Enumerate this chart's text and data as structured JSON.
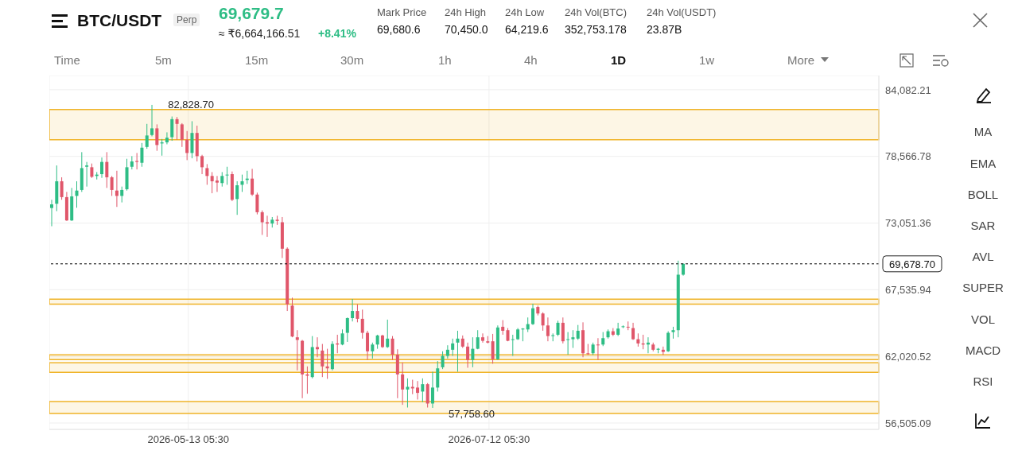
{
  "chart_data": {
    "type": "candlestick",
    "title": "BTC/USDT",
    "subtitle": "Perp",
    "x": [
      "2026-04-16",
      "2026-04-17",
      "2026-04-18",
      "2026-04-19",
      "2026-04-20",
      "2026-04-21",
      "2026-04-22",
      "2026-04-23",
      "2026-04-24",
      "2026-04-25",
      "2026-04-26",
      "2026-04-27",
      "2026-04-28",
      "2026-04-29",
      "2026-04-30",
      "2026-05-01",
      "2026-05-02",
      "2026-05-03",
      "2026-05-04",
      "2026-05-05",
      "2026-05-06",
      "2026-05-07",
      "2026-05-08",
      "2026-05-09",
      "2026-05-10",
      "2026-05-11",
      "2026-05-12",
      "2026-05-13",
      "2026-05-14",
      "2026-05-15",
      "2026-05-16",
      "2026-05-17",
      "2026-05-18",
      "2026-05-19",
      "2026-05-20",
      "2026-05-21",
      "2026-05-22",
      "2026-05-23",
      "2026-05-24",
      "2026-05-25",
      "2026-05-26",
      "2026-05-27",
      "2026-05-28",
      "2026-05-29",
      "2026-05-30",
      "2026-05-31",
      "2026-06-01",
      "2026-06-02",
      "2026-06-03",
      "2026-06-04",
      "2026-06-05",
      "2026-06-06",
      "2026-06-07",
      "2026-06-08",
      "2026-06-09",
      "2026-06-10",
      "2026-06-11",
      "2026-06-12",
      "2026-06-13",
      "2026-06-14",
      "2026-06-15",
      "2026-06-16",
      "2026-06-17",
      "2026-06-18",
      "2026-06-19",
      "2026-06-20",
      "2026-06-21",
      "2026-06-22",
      "2026-06-23",
      "2026-06-24",
      "2026-06-25",
      "2026-06-26",
      "2026-06-27",
      "2026-06-28",
      "2026-06-29",
      "2026-06-30",
      "2026-07-01",
      "2026-07-02",
      "2026-07-03",
      "2026-07-04",
      "2026-07-05",
      "2026-07-06",
      "2026-07-07",
      "2026-07-08",
      "2026-07-09",
      "2026-07-10",
      "2026-07-11",
      "2026-07-12",
      "2026-07-13",
      "2026-07-14",
      "2026-07-15",
      "2026-07-16",
      "2026-07-17",
      "2026-07-18",
      "2026-07-19",
      "2026-07-20",
      "2026-07-21",
      "2026-07-22",
      "2026-07-23",
      "2026-07-24",
      "2026-07-25",
      "2026-07-26",
      "2026-07-27",
      "2026-07-28",
      "2026-07-29",
      "2026-07-30",
      "2026-07-31",
      "2026-08-01",
      "2026-08-02",
      "2026-08-03",
      "2026-08-04",
      "2026-08-05",
      "2026-08-06",
      "2026-08-07",
      "2026-08-08",
      "2026-08-09",
      "2026-08-10",
      "2026-08-11",
      "2026-08-12",
      "2026-08-13",
      "2026-08-14",
      "2026-08-15",
      "2026-08-16",
      "2026-08-17",
      "2026-08-18",
      "2026-08-19",
      "2026-08-20"
    ],
    "ohlc": [
      [
        74300,
        74980,
        72790,
        74600
      ],
      [
        74650,
        77820,
        74040,
        76510
      ],
      [
        76510,
        76840,
        74980,
        75200
      ],
      [
        75200,
        75630,
        73230,
        73270
      ],
      [
        73270,
        75960,
        73230,
        75260
      ],
      [
        75300,
        76510,
        74320,
        75740
      ],
      [
        75790,
        78920,
        75630,
        77600
      ],
      [
        77710,
        78110,
        76070,
        77820
      ],
      [
        77670,
        77980,
        76790,
        76880
      ],
      [
        76950,
        77270,
        76660,
        77060
      ],
      [
        77100,
        78480,
        76790,
        78110
      ],
      [
        78110,
        78920,
        75960,
        76840
      ],
      [
        76840,
        76950,
        75300,
        75790
      ],
      [
        75740,
        77380,
        74390,
        75300
      ],
      [
        75300,
        76070,
        74760,
        75790
      ],
      [
        75850,
        78370,
        75740,
        77670
      ],
      [
        77710,
        78590,
        77490,
        78150
      ],
      [
        78190,
        78850,
        77490,
        78110
      ],
      [
        78040,
        79680,
        77710,
        79290
      ],
      [
        79350,
        81260,
        79200,
        80300
      ],
      [
        80340,
        82828.7,
        80230,
        80890
      ],
      [
        80890,
        81220,
        79030,
        79510
      ],
      [
        79640,
        80010,
        78630,
        79730
      ],
      [
        79730,
        80560,
        79570,
        80120
      ],
      [
        80160,
        81870,
        79860,
        81650
      ],
      [
        81650,
        81830,
        79950,
        81260
      ],
      [
        81220,
        81320,
        79350,
        79950
      ],
      [
        79950,
        80670,
        78260,
        78850
      ],
      [
        78850,
        81480,
        78410,
        80510
      ],
      [
        80510,
        81110,
        78150,
        78590
      ],
      [
        78590,
        78700,
        77100,
        77670
      ],
      [
        77600,
        77930,
        76220,
        76950
      ],
      [
        76950,
        77270,
        75520,
        76510
      ],
      [
        76570,
        76950,
        75630,
        76400
      ],
      [
        76360,
        77270,
        76070,
        76950
      ],
      [
        77010,
        77710,
        76220,
        77060
      ],
      [
        77100,
        77320,
        74870,
        74980
      ],
      [
        75040,
        76510,
        73730,
        76180
      ],
      [
        76220,
        77060,
        75630,
        76510
      ],
      [
        76620,
        77380,
        76290,
        76730
      ],
      [
        76730,
        77540,
        75300,
        75410
      ],
      [
        75410,
        75570,
        73770,
        73950
      ],
      [
        73950,
        74100,
        72070,
        73120
      ],
      [
        73120,
        73660,
        71910,
        73010
      ],
      [
        73010,
        73550,
        72680,
        73330
      ],
      [
        73330,
        73660,
        72900,
        73230
      ],
      [
        73120,
        73550,
        70160,
        70930
      ],
      [
        70930,
        71040,
        65780,
        66330
      ],
      [
        66220,
        66880,
        63600,
        63660
      ],
      [
        63600,
        64190,
        60860,
        63380
      ],
      [
        63310,
        63380,
        58560,
        60530
      ],
      [
        60530,
        61190,
        58930,
        60420
      ],
      [
        60310,
        63700,
        60200,
        62790
      ],
      [
        62790,
        63600,
        61950,
        62610
      ],
      [
        62500,
        63050,
        60310,
        61190
      ],
      [
        61190,
        62650,
        60160,
        61030
      ],
      [
        60970,
        63270,
        60860,
        63050
      ],
      [
        63090,
        63810,
        62280,
        63000
      ],
      [
        63000,
        64250,
        62940,
        63920
      ],
      [
        63970,
        65240,
        63220,
        65190
      ],
      [
        65190,
        66770,
        64910,
        65780
      ],
      [
        65780,
        66330,
        64840,
        65130
      ],
      [
        65130,
        65890,
        63490,
        63970
      ],
      [
        63970,
        64140,
        61730,
        62440
      ],
      [
        62440,
        63160,
        61840,
        63000
      ],
      [
        63000,
        63810,
        62650,
        63750
      ],
      [
        63750,
        63810,
        62720,
        62790
      ],
      [
        62790,
        65060,
        62720,
        63490
      ],
      [
        63490,
        63700,
        61730,
        62170
      ],
      [
        62170,
        62610,
        58560,
        60530
      ],
      [
        60530,
        61520,
        58010,
        59280
      ],
      [
        59280,
        60200,
        57790,
        59500
      ],
      [
        59500,
        60090,
        58890,
        59370
      ],
      [
        59440,
        59980,
        58450,
        59000
      ],
      [
        59110,
        60200,
        58230,
        59720
      ],
      [
        59720,
        59810,
        57790,
        58120
      ],
      [
        58120,
        60750,
        57758.6,
        59440
      ],
      [
        59440,
        61630,
        59110,
        61030
      ],
      [
        61120,
        62440,
        60970,
        62060
      ],
      [
        62060,
        62940,
        61840,
        62570
      ],
      [
        62570,
        63490,
        62060,
        63090
      ],
      [
        63160,
        64140,
        60750,
        63490
      ],
      [
        63490,
        63750,
        62720,
        62830
      ],
      [
        62830,
        63160,
        61080,
        61730
      ],
      [
        61730,
        63600,
        61120,
        62650
      ],
      [
        62650,
        64190,
        62610,
        63600
      ],
      [
        63600,
        63920,
        63160,
        63310
      ],
      [
        63270,
        63700,
        63090,
        63160
      ],
      [
        63270,
        63880,
        61410,
        61780
      ],
      [
        61780,
        64580,
        61730,
        64410
      ],
      [
        64470,
        65020,
        63810,
        64140
      ],
      [
        64190,
        64360,
        63270,
        63310
      ],
      [
        63380,
        63810,
        62060,
        63440
      ],
      [
        63440,
        64360,
        63380,
        64250
      ],
      [
        64250,
        64360,
        63270,
        64320
      ],
      [
        64250,
        65240,
        64030,
        64690
      ],
      [
        64690,
        66380,
        64620,
        66000
      ],
      [
        66110,
        66220,
        65410,
        65570
      ],
      [
        65570,
        65670,
        64140,
        64580
      ],
      [
        64580,
        65240,
        63270,
        63700
      ],
      [
        63700,
        63920,
        63270,
        63770
      ],
      [
        63810,
        64970,
        63700,
        64800
      ],
      [
        64800,
        65240,
        63090,
        63270
      ],
      [
        63380,
        64030,
        62170,
        63440
      ],
      [
        63440,
        64190,
        62720,
        63600
      ],
      [
        63490,
        64620,
        63380,
        64140
      ],
      [
        64190,
        64840,
        61950,
        62280
      ],
      [
        62280,
        63050,
        62130,
        62220
      ],
      [
        62280,
        63160,
        62130,
        63000
      ],
      [
        63000,
        63530,
        61730,
        62940
      ],
      [
        63000,
        64030,
        62870,
        63530
      ],
      [
        63600,
        64250,
        63490,
        64100
      ],
      [
        64100,
        64360,
        63700,
        63810
      ],
      [
        63810,
        64800,
        63700,
        64320
      ],
      [
        64470,
        64580,
        64360,
        64510
      ],
      [
        64470,
        64910,
        64190,
        64410
      ],
      [
        64360,
        64800,
        63380,
        63440
      ],
      [
        63440,
        63920,
        62830,
        63090
      ],
      [
        63090,
        63810,
        62610,
        63000
      ],
      [
        63000,
        63600,
        62280,
        63160
      ],
      [
        63000,
        63160,
        62440,
        62570
      ],
      [
        62570,
        62720,
        62280,
        62650
      ],
      [
        62570,
        62830,
        62130,
        62390
      ],
      [
        62440,
        64100,
        62390,
        63970
      ],
      [
        64030,
        64470,
        63490,
        64190
      ],
      [
        64190,
        69940,
        63600,
        68780
      ],
      [
        68780,
        69720,
        68700,
        69678.7
      ]
    ],
    "colors": [
      "#2ebd85",
      "#2ebd85",
      "#e0566a",
      "#e0566a",
      "#2ebd85",
      "#2ebd85",
      "#2ebd85",
      "#2ebd85",
      "#e0566a",
      "#2ebd85",
      "#2ebd85",
      "#e0566a",
      "#e0566a",
      "#e0566a",
      "#2ebd85",
      "#2ebd85",
      "#2ebd85",
      "#e0566a",
      "#2ebd85",
      "#2ebd85",
      "#2ebd85",
      "#e0566a",
      "#2ebd85",
      "#2ebd85",
      "#2ebd85",
      "#e0566a",
      "#e0566a",
      "#e0566a",
      "#2ebd85",
      "#e0566a",
      "#e0566a",
      "#e0566a",
      "#e0566a",
      "#e0566a",
      "#2ebd85",
      "#2ebd85",
      "#e0566a",
      "#2ebd85",
      "#2ebd85",
      "#2ebd85",
      "#e0566a",
      "#e0566a",
      "#e0566a",
      "#e0566a",
      "#2ebd85",
      "#e0566a",
      "#e0566a",
      "#e0566a",
      "#e0566a",
      "#e0566a",
      "#e0566a",
      "#e0566a",
      "#2ebd85",
      "#e0566a",
      "#e0566a",
      "#e0566a",
      "#2ebd85",
      "#e0566a",
      "#2ebd85",
      "#2ebd85",
      "#2ebd85",
      "#e0566a",
      "#e0566a",
      "#e0566a",
      "#2ebd85",
      "#2ebd85",
      "#e0566a",
      "#2ebd85",
      "#e0566a",
      "#e0566a",
      "#e0566a",
      "#2ebd85",
      "#e0566a",
      "#e0566a",
      "#2ebd85",
      "#e0566a",
      "#2ebd85",
      "#2ebd85",
      "#2ebd85",
      "#2ebd85",
      "#2ebd85",
      "#2ebd85",
      "#e0566a",
      "#e0566a",
      "#2ebd85",
      "#2ebd85",
      "#e0566a",
      "#e0566a",
      "#e0566a",
      "#2ebd85",
      "#e0566a",
      "#e0566a",
      "#2ebd85",
      "#2ebd85",
      "#2ebd85",
      "#2ebd85",
      "#2ebd85",
      "#e0566a",
      "#e0566a",
      "#e0566a",
      "#2ebd85",
      "#2ebd85",
      "#e0566a",
      "#2ebd85",
      "#2ebd85",
      "#2ebd85",
      "#e0566a",
      "#e0566a",
      "#2ebd85",
      "#e0566a",
      "#2ebd85",
      "#2ebd85",
      "#e0566a",
      "#2ebd85",
      "#2ebd85",
      "#e0566a",
      "#e0566a",
      "#e0566a",
      "#e0566a",
      "#2ebd85",
      "#e0566a",
      "#2ebd85",
      "#e0566a",
      "#2ebd85",
      "#2ebd85",
      "#2ebd85",
      "#2ebd85"
    ],
    "xlim": [
      "2026-04-15T12:00",
      "2026-09-28"
    ],
    "xticks": [
      {
        "value": "2026-05-13T05:30",
        "label": "2026-05-13 05:30"
      },
      {
        "value": "2026-07-12T05:30",
        "label": "2026-07-12 05:30"
      }
    ],
    "ylim": [
      55980,
      85260
    ],
    "yticks": [
      {
        "value": 56505.09,
        "label": "56,505.09"
      },
      {
        "value": 62020.52,
        "label": "62,020.52"
      },
      {
        "value": 67535.94,
        "label": "67,535.94"
      },
      {
        "value": 73051.36,
        "label": "73,051.36"
      },
      {
        "value": 78566.78,
        "label": "78,566.78"
      },
      {
        "value": 84082.21,
        "label": "84,082.21"
      }
    ],
    "grid": true,
    "ref_lines": [
      {
        "axis": "y",
        "value": 69678.7,
        "label": "69,678.70",
        "color": "#000000",
        "line_style": "dashed"
      }
    ],
    "bands": [
      {
        "axis": "y",
        "from": 79945,
        "to": 82440,
        "color": "#f0b429"
      },
      {
        "axis": "y",
        "from": 66350,
        "to": 66750,
        "color": "#f0b429"
      },
      {
        "axis": "y",
        "from": 61758,
        "to": 62152,
        "color": "#f0b429"
      },
      {
        "axis": "y",
        "from": 60707,
        "to": 61495,
        "color": "#f0b429"
      },
      {
        "axis": "y",
        "from": 57292,
        "to": 58277,
        "color": "#f0b429"
      }
    ],
    "annotations": [
      "69,679.7",
      "≈ ₹6,664,166.51",
      "+8.41%",
      "Mark Price",
      "24h High",
      "24h Low",
      "24h Vol(BTC)",
      "24h Vol(USDT)",
      "69,680.6",
      "70,450.0",
      "64,219.6",
      "352,753.178",
      "23.87B",
      "Time",
      "5m",
      "15m",
      "30m",
      "1h",
      "4h",
      "1D",
      "1w",
      "More",
      "MA",
      "EMA",
      "BOLL",
      "SAR",
      "AVL",
      "SUPER",
      "VOL",
      "MACD",
      "RSI",
      {
        "text": "82,828.70",
        "x": "2026-05-06",
        "y": 82828.7
      },
      {
        "text": "57,758.60",
        "x": "2026-07-01",
        "y": 57758.6
      }
    ]
  }
}
